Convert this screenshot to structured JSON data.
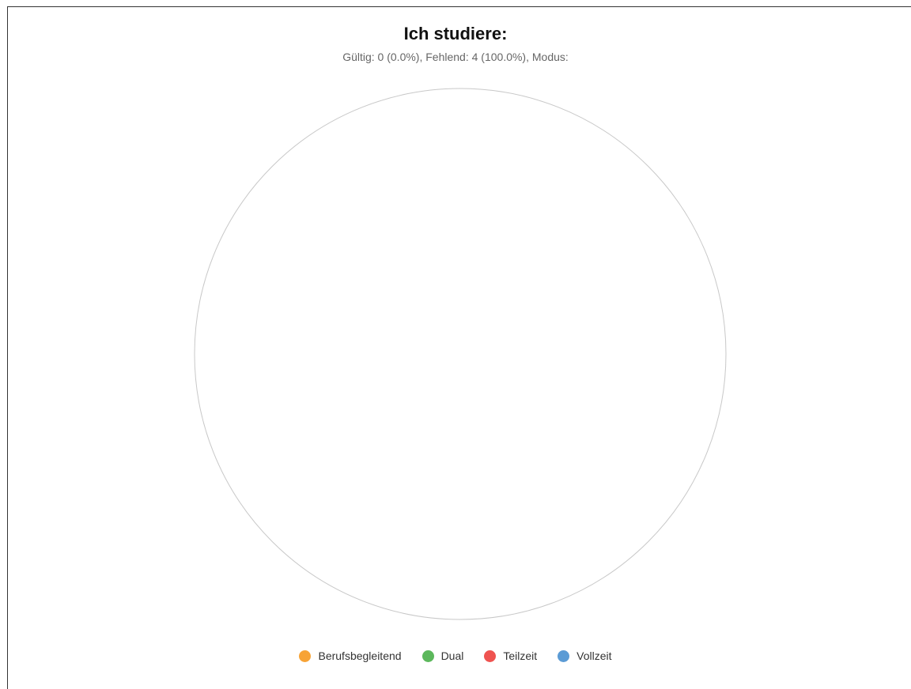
{
  "chart_data": {
    "type": "pie",
    "title": "Ich studiere:",
    "subtitle": "Gültig: 0 (0.0%), Fehlend: 4 (100.0%), Modus:",
    "categories": [
      "Berufsbegleitend",
      "Dual",
      "Teilzeit",
      "Vollzeit"
    ],
    "values": [
      0,
      0,
      0,
      0
    ],
    "colors": [
      "#f7a336",
      "#5cb85c",
      "#ef5350",
      "#5b9bd5"
    ],
    "legend_position": "bottom"
  }
}
